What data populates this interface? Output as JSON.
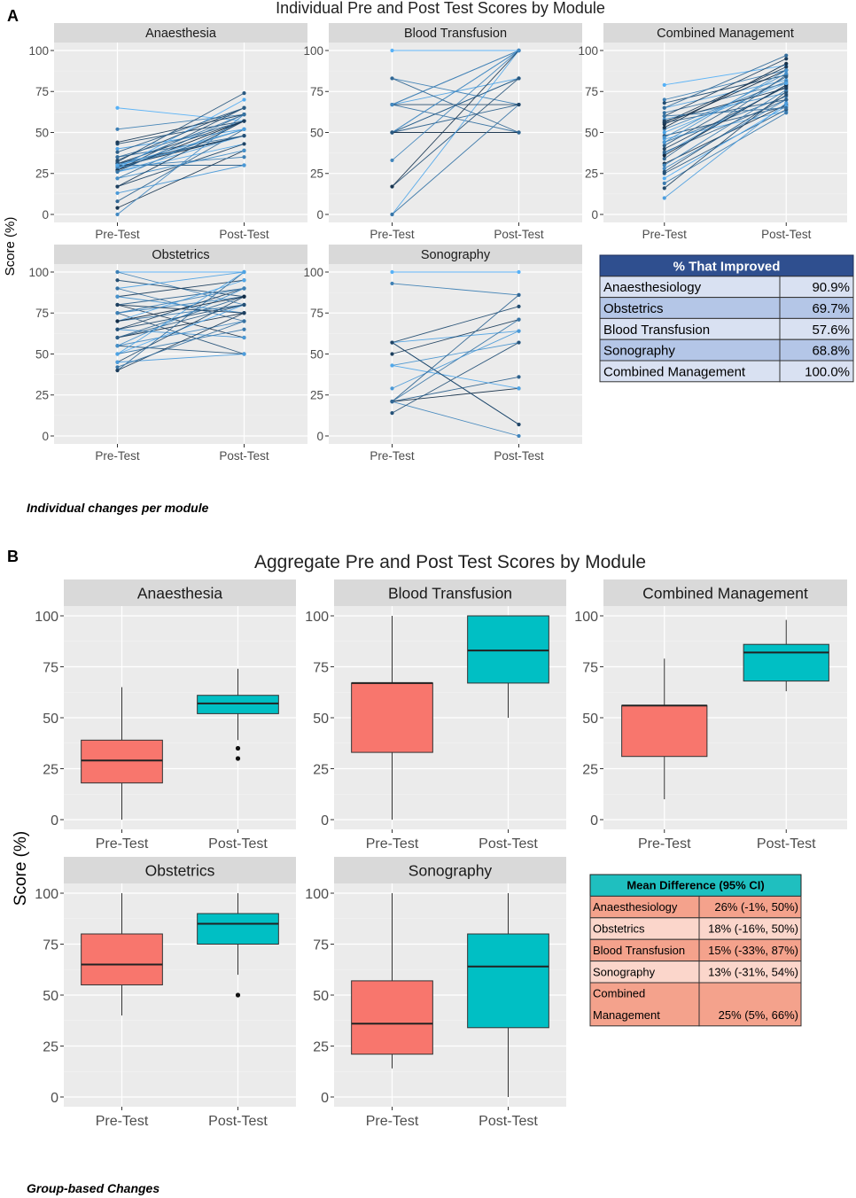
{
  "figure": {
    "panel_a_letter": "A",
    "panel_b_letter": "B",
    "caption_a": "Individual changes per module",
    "caption_b": "Group-based Changes"
  },
  "chart_data": [
    {
      "type": "line",
      "title": "Individual Pre and Post Test Scores by Module",
      "ylabel": "Score (%)",
      "xlabel": "",
      "categories": [
        "Pre-Test",
        "Post-Test"
      ],
      "yticks": [
        "0",
        "25",
        "50",
        "75",
        "100"
      ],
      "ylim": [
        0,
        100
      ],
      "colors": {
        "light": "#56B1F7",
        "dark": "#132B43",
        "panel_bg": "#EBEBEB",
        "strip_bg": "#D9D9D9"
      },
      "facets": [
        {
          "name": "Anaesthesia",
          "pairs": [
            [
              65,
              57
            ],
            [
              52,
              61
            ],
            [
              43,
              57
            ],
            [
              40,
              52
            ],
            [
              35,
              48
            ],
            [
              31,
              57
            ],
            [
              30,
              48
            ],
            [
              30,
              30
            ],
            [
              29,
              48
            ],
            [
              28,
              52
            ],
            [
              27,
              65
            ],
            [
              26,
              43
            ],
            [
              22,
              57
            ],
            [
              17,
              43
            ],
            [
              13,
              30
            ],
            [
              8,
              52
            ],
            [
              4,
              39
            ],
            [
              0,
              61
            ],
            [
              32,
              74
            ],
            [
              28,
              70
            ],
            [
              30,
              61
            ],
            [
              33,
              65
            ],
            [
              26,
              48
            ],
            [
              35,
              57
            ],
            [
              44,
              61
            ],
            [
              22,
              39
            ],
            [
              38,
              65
            ],
            [
              27,
              57
            ],
            [
              29,
              35
            ],
            [
              31,
              48
            ],
            [
              30,
              52
            ],
            [
              26,
              61
            ],
            [
              17,
              57
            ]
          ]
        },
        {
          "name": "Blood Transfusion",
          "pairs": [
            [
              100,
              100
            ],
            [
              83,
              67
            ],
            [
              67,
              100
            ],
            [
              67,
              83
            ],
            [
              67,
              50
            ],
            [
              50,
              100
            ],
            [
              50,
              83
            ],
            [
              50,
              67
            ],
            [
              50,
              50
            ],
            [
              33,
              100
            ],
            [
              17,
              83
            ],
            [
              0,
              100
            ],
            [
              0,
              67
            ],
            [
              67,
              67
            ],
            [
              50,
              100
            ],
            [
              83,
              50
            ],
            [
              17,
              100
            ],
            [
              67,
              100
            ],
            [
              50,
              83
            ]
          ]
        },
        {
          "name": "Combined Management",
          "pairs": [
            [
              79,
              91
            ],
            [
              70,
              88
            ],
            [
              68,
              85
            ],
            [
              65,
              82
            ],
            [
              62,
              80
            ],
            [
              60,
              95
            ],
            [
              58,
              74
            ],
            [
              56,
              70
            ],
            [
              55,
              88
            ],
            [
              52,
              81
            ],
            [
              48,
              66
            ],
            [
              46,
              63
            ],
            [
              44,
              72
            ],
            [
              40,
              78
            ],
            [
              37,
              79
            ],
            [
              34,
              85
            ],
            [
              31,
              67
            ],
            [
              28,
              70
            ],
            [
              25,
              64
            ],
            [
              22,
              66
            ],
            [
              19,
              62
            ],
            [
              16,
              75
            ],
            [
              10,
              68
            ],
            [
              65,
              97
            ],
            [
              56,
              90
            ],
            [
              47,
              86
            ],
            [
              42,
              84
            ],
            [
              36,
              79
            ],
            [
              30,
              76
            ],
            [
              26,
              73
            ],
            [
              50,
              80
            ],
            [
              60,
              65
            ],
            [
              57,
              77
            ],
            [
              44,
              88
            ],
            [
              38,
              70
            ],
            [
              53,
              92
            ]
          ]
        },
        {
          "name": "Obstetrics",
          "pairs": [
            [
              100,
              100
            ],
            [
              100,
              80
            ],
            [
              95,
              85
            ],
            [
              90,
              100
            ],
            [
              90,
              70
            ],
            [
              85,
              95
            ],
            [
              85,
              75
            ],
            [
              80,
              90
            ],
            [
              80,
              60
            ],
            [
              75,
              85
            ],
            [
              75,
              50
            ],
            [
              70,
              95
            ],
            [
              70,
              80
            ],
            [
              65,
              90
            ],
            [
              65,
              60
            ],
            [
              60,
              85
            ],
            [
              60,
              75
            ],
            [
              55,
              70
            ],
            [
              55,
              50
            ],
            [
              50,
              80
            ],
            [
              50,
              65
            ],
            [
              45,
              85
            ],
            [
              45,
              50
            ],
            [
              40,
              100
            ],
            [
              40,
              75
            ],
            [
              55,
              90
            ],
            [
              60,
              80
            ],
            [
              70,
              85
            ],
            [
              75,
              90
            ],
            [
              65,
              80
            ],
            [
              50,
              100
            ],
            [
              42,
              70
            ],
            [
              80,
              75
            ]
          ]
        },
        {
          "name": "Sonography",
          "pairs": [
            [
              100,
              100
            ],
            [
              93,
              86
            ],
            [
              57,
              79
            ],
            [
              57,
              64
            ],
            [
              57,
              7
            ],
            [
              50,
              71
            ],
            [
              43,
              57
            ],
            [
              21,
              36
            ],
            [
              21,
              29
            ],
            [
              21,
              0
            ],
            [
              14,
              57
            ],
            [
              43,
              29
            ],
            [
              21,
              71
            ],
            [
              57,
              7
            ],
            [
              29,
              64
            ],
            [
              21,
              86
            ]
          ]
        }
      ],
      "table": {
        "header": "% That Improved",
        "rows": [
          {
            "label": "Anaesthesiology",
            "value": "90.9%"
          },
          {
            "label": "Obstetrics",
            "value": "69.7%"
          },
          {
            "label": "Blood Transfusion",
            "value": "57.6%"
          },
          {
            "label": "Sonography",
            "value": "68.8%"
          },
          {
            "label": "Combined Management",
            "value": "100.0%"
          }
        ],
        "colors": {
          "header_bg": "#2F4F8F",
          "header_fg": "#ffffff",
          "row_a": "#D9E1F2",
          "row_b": "#B4C6E7"
        }
      }
    },
    {
      "type": "box",
      "title": "Aggregate Pre and Post Test Scores by Module",
      "ylabel": "Score (%)",
      "xlabel": "",
      "categories": [
        "Pre-Test",
        "Post-Test"
      ],
      "yticks": [
        "0",
        "25",
        "50",
        "75",
        "100"
      ],
      "ylim": [
        0,
        100
      ],
      "colors": {
        "pre": "#F8766D",
        "post": "#00BFC4",
        "panel_bg": "#EBEBEB",
        "strip_bg": "#D9D9D9"
      },
      "facets": [
        {
          "name": "Anaesthesia",
          "pre": {
            "min": 0,
            "q1": 18,
            "median": 29,
            "q3": 39,
            "max": 65,
            "outliers": []
          },
          "post": {
            "min": 39,
            "q1": 52,
            "median": 57,
            "q3": 61,
            "max": 74,
            "outliers": [
              35,
              30
            ]
          }
        },
        {
          "name": "Blood Transfusion",
          "pre": {
            "min": 0,
            "q1": 33,
            "median": 67,
            "q3": 67,
            "max": 100,
            "outliers": []
          },
          "post": {
            "min": 50,
            "q1": 67,
            "median": 83,
            "q3": 100,
            "max": 100,
            "outliers": []
          }
        },
        {
          "name": "Combined Management",
          "pre": {
            "min": 10,
            "q1": 31,
            "median": 56,
            "q3": 56,
            "max": 79,
            "outliers": []
          },
          "post": {
            "min": 63,
            "q1": 68,
            "median": 82,
            "q3": 86,
            "max": 98,
            "outliers": []
          }
        },
        {
          "name": "Obstetrics",
          "pre": {
            "min": 40,
            "q1": 55,
            "median": 65,
            "q3": 80,
            "max": 100,
            "outliers": []
          },
          "post": {
            "min": 60,
            "q1": 75,
            "median": 85,
            "q3": 90,
            "max": 100,
            "outliers": [
              50
            ]
          }
        },
        {
          "name": "Sonography",
          "pre": {
            "min": 14,
            "q1": 21,
            "median": 36,
            "q3": 57,
            "max": 100,
            "outliers": []
          },
          "post": {
            "min": 0,
            "q1": 34,
            "median": 64,
            "q3": 80,
            "max": 100,
            "outliers": []
          }
        }
      ],
      "table": {
        "header": "Mean Difference (95% CI)",
        "rows": [
          {
            "label": "Anaesthesiology",
            "value": "26% (-1%, 50%)"
          },
          {
            "label": "Obstetrics",
            "value": "18% (-16%, 50%)"
          },
          {
            "label": "Blood Transfusion",
            "value": "15% (-33%, 87%)"
          },
          {
            "label": "Sonography",
            "value": "13% (-31%, 54%)"
          },
          {
            "label": "Combined Management",
            "label_lines": [
              "Combined",
              "Management"
            ],
            "value": "25% (5%, 66%)"
          }
        ],
        "colors": {
          "header_bg": "#1FBFBF",
          "row_a": "#F4A28C",
          "row_b": "#FBD6CB"
        }
      }
    }
  ]
}
